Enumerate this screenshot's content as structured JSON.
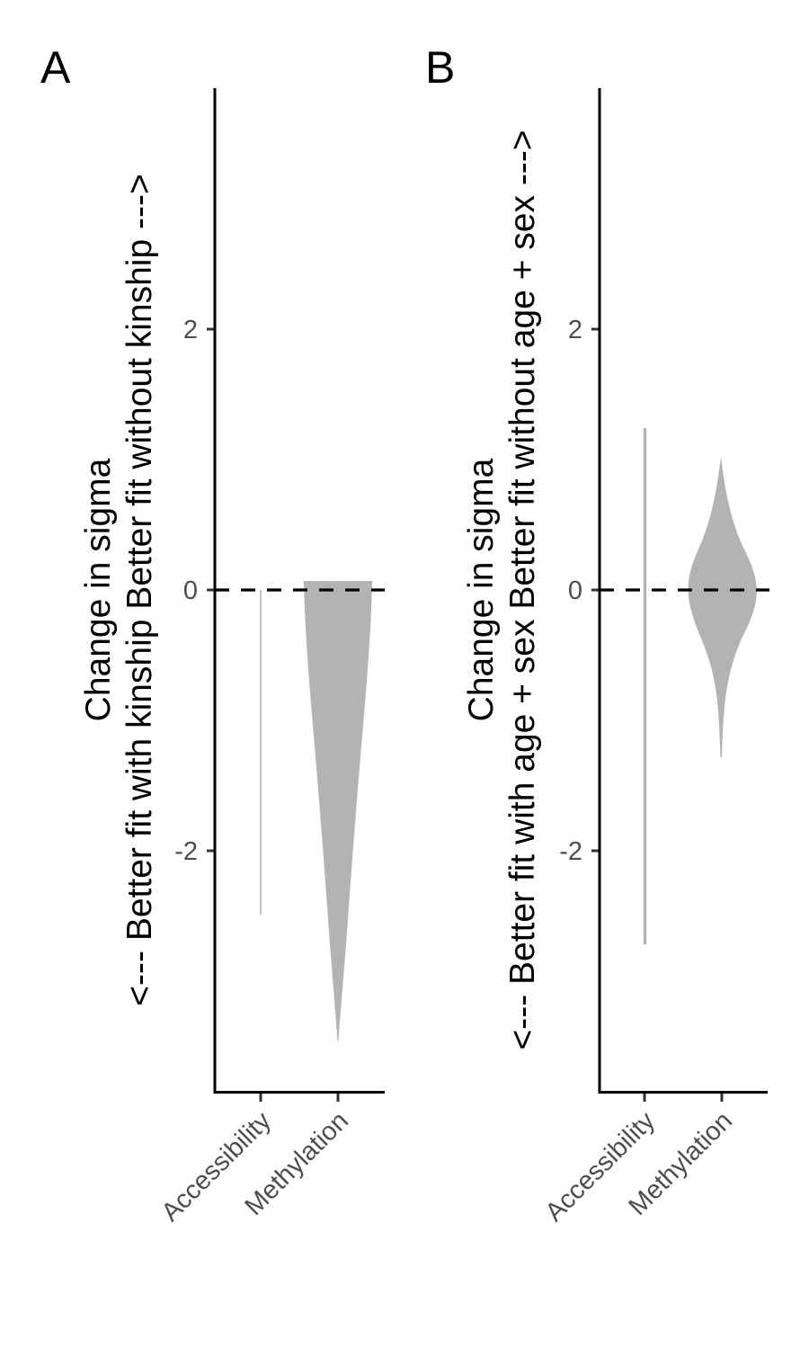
{
  "chart_data": [
    {
      "type": "violin",
      "panel_label": "A",
      "ylabel_lines": [
        "<--- Better fit with kinship   Better fit without kinship --->",
        "Change in sigma"
      ],
      "categories": [
        "Accessibility",
        "Methylation"
      ],
      "yticks": [
        "-2",
        "0",
        "2"
      ],
      "ylim": [
        -3.83,
        3.85
      ],
      "reference_line": 0,
      "grid": false,
      "fill_color": "#b3b3b3",
      "distributions": [
        {
          "category": "Accessibility",
          "min": -2.49,
          "max": 0.0
        },
        {
          "category": "Methylation",
          "min": -3.46,
          "max": 0.07
        }
      ]
    },
    {
      "type": "violin",
      "panel_label": "B",
      "ylabel_lines": [
        "<--- Better fit with age + sex   Better fit without age + sex --->",
        "Change in sigma"
      ],
      "categories": [
        "Accessibility",
        "Methylation"
      ],
      "yticks": [
        "-2",
        "0",
        "2"
      ],
      "ylim": [
        -3.83,
        3.85
      ],
      "reference_line": 0,
      "grid": false,
      "fill_color": "#b3b3b3",
      "distributions": [
        {
          "category": "Accessibility",
          "min": -2.71,
          "max": 1.24
        },
        {
          "category": "Methylation",
          "min": -1.28,
          "max": 1.02
        }
      ]
    }
  ]
}
